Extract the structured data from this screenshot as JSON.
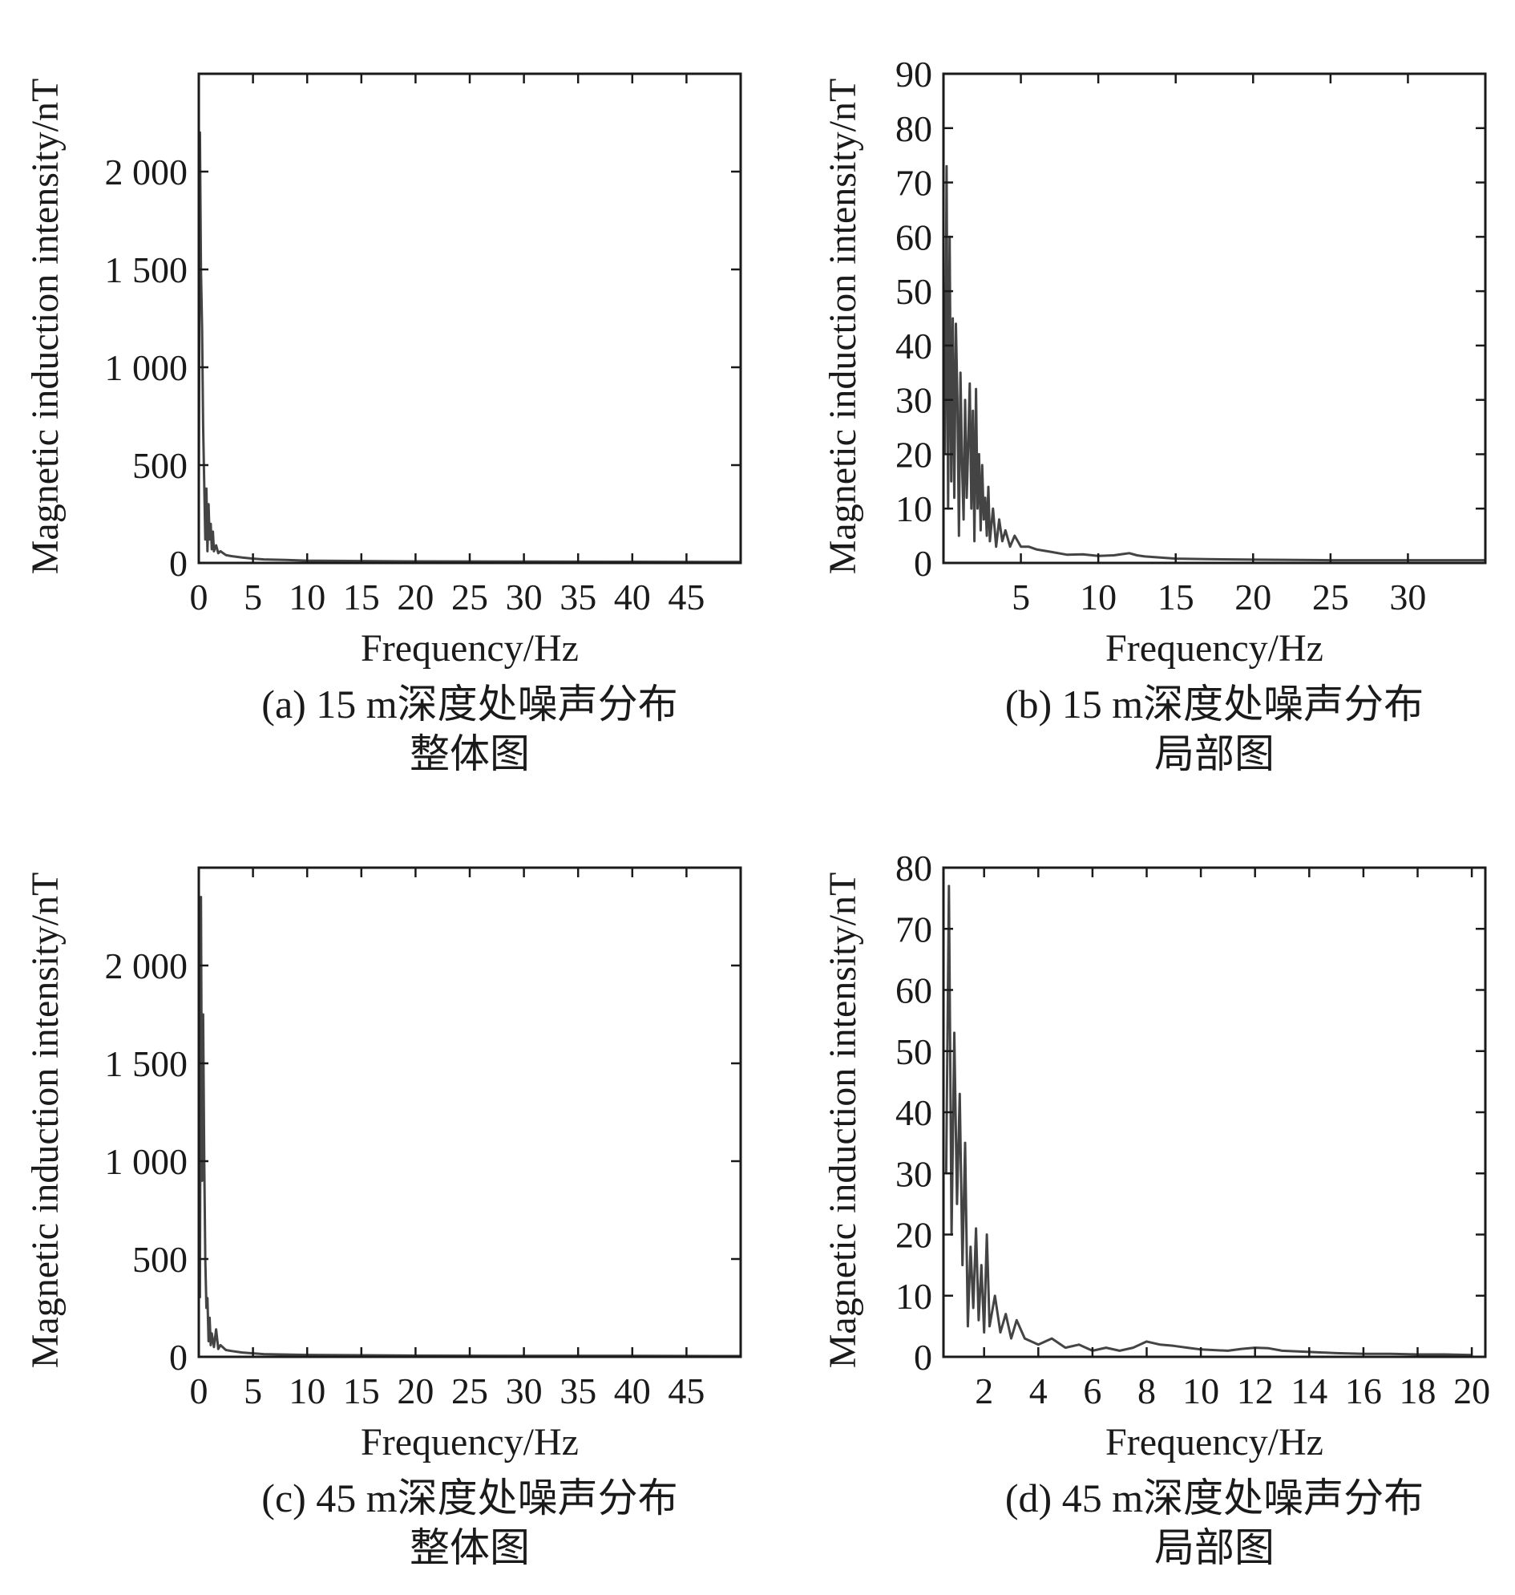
{
  "chart_data": [
    {
      "id": "a",
      "type": "line",
      "caption": [
        "(a) 15 m深度处噪声分布",
        "整体图"
      ],
      "xlabel": "Frequency/Hz",
      "ylabel": "Magnetic induction intensity/nT",
      "xlim": [
        0,
        50
      ],
      "ylim": [
        0,
        2500
      ],
      "xticks": [
        0,
        5,
        10,
        15,
        20,
        25,
        30,
        35,
        40,
        45
      ],
      "xtick_labels": [
        "0",
        "5",
        "10",
        "15",
        "20",
        "25",
        "30",
        "35",
        "40",
        "45"
      ],
      "yticks": [
        0,
        500,
        1000,
        1500,
        2000
      ],
      "ytick_labels": [
        "0",
        "500",
        "1 000",
        "1 500",
        "2 000"
      ],
      "grid": false,
      "series": [
        {
          "color": "#444444",
          "x": [
            0,
            0.1,
            0.2,
            0.3,
            0.4,
            0.5,
            0.6,
            0.7,
            0.8,
            0.9,
            1.0,
            1.1,
            1.2,
            1.3,
            1.4,
            1.6,
            1.8,
            2.0,
            2.5,
            3,
            4,
            5,
            6,
            8,
            10,
            15,
            20,
            30,
            40,
            50
          ],
          "y": [
            400,
            2200,
            1500,
            1200,
            700,
            400,
            120,
            380,
            60,
            300,
            120,
            200,
            70,
            160,
            60,
            90,
            50,
            60,
            40,
            35,
            28,
            22,
            18,
            15,
            12,
            10,
            8,
            7,
            6,
            5
          ]
        }
      ]
    },
    {
      "id": "b",
      "type": "line",
      "caption": [
        "(b) 15 m深度处噪声分布",
        "局部图"
      ],
      "xlabel": "Frequency/Hz",
      "ylabel": "Magnetic induction intensity/nT",
      "xlim": [
        0,
        35
      ],
      "ylim": [
        0,
        90
      ],
      "xticks": [
        5,
        10,
        15,
        20,
        25,
        30
      ],
      "xtick_labels": [
        "5",
        "10",
        "15",
        "20",
        "25",
        "30"
      ],
      "yticks": [
        0,
        10,
        20,
        30,
        40,
        50,
        60,
        70,
        80,
        90
      ],
      "ytick_labels": [
        "0",
        "10",
        "20",
        "30",
        "40",
        "50",
        "60",
        "70",
        "80",
        "90"
      ],
      "grid": false,
      "series": [
        {
          "color": "#444444",
          "x": [
            0.1,
            0.2,
            0.3,
            0.4,
            0.5,
            0.6,
            0.7,
            0.8,
            0.9,
            1.0,
            1.1,
            1.2,
            1.3,
            1.4,
            1.5,
            1.6,
            1.7,
            1.8,
            1.9,
            2.0,
            2.1,
            2.2,
            2.3,
            2.4,
            2.5,
            2.6,
            2.7,
            2.8,
            2.9,
            3.0,
            3.2,
            3.4,
            3.6,
            3.8,
            4.0,
            4.3,
            4.6,
            5.0,
            5.5,
            6,
            7,
            8,
            9,
            10,
            11,
            12,
            12.5,
            13,
            14,
            15,
            17,
            20,
            25,
            30,
            35
          ],
          "y": [
            20,
            73,
            10,
            60,
            15,
            45,
            12,
            44,
            30,
            5,
            35,
            18,
            8,
            30,
            12,
            22,
            33,
            10,
            28,
            4,
            32,
            10,
            20,
            6,
            18,
            8,
            12,
            5,
            14,
            4,
            10,
            3,
            8,
            4,
            6,
            3,
            5,
            3,
            3,
            2.5,
            2,
            1.5,
            1.6,
            1.3,
            1.4,
            1.8,
            1.4,
            1.2,
            1.0,
            0.8,
            0.7,
            0.6,
            0.5,
            0.5,
            0.5
          ]
        }
      ]
    },
    {
      "id": "c",
      "type": "line",
      "caption": [
        "(c) 45 m深度处噪声分布",
        "整体图"
      ],
      "xlabel": "Frequency/Hz",
      "ylabel": "Magnetic induction intensity/nT",
      "xlim": [
        0,
        50
      ],
      "ylim": [
        0,
        2500
      ],
      "xticks": [
        0,
        5,
        10,
        15,
        20,
        25,
        30,
        35,
        40,
        45
      ],
      "xtick_labels": [
        "0",
        "5",
        "10",
        "15",
        "20",
        "25",
        "30",
        "35",
        "40",
        "45"
      ],
      "yticks": [
        0,
        500,
        1000,
        1500,
        2000
      ],
      "ytick_labels": [
        "0",
        "500",
        "1 000",
        "1 500",
        "2 000"
      ],
      "grid": false,
      "series": [
        {
          "color": "#444444",
          "x": [
            0.1,
            0.2,
            0.3,
            0.4,
            0.5,
            0.6,
            0.7,
            0.8,
            0.9,
            1.0,
            1.1,
            1.2,
            1.4,
            1.6,
            1.8,
            2.0,
            2.5,
            3,
            4,
            5,
            6,
            8,
            10,
            15,
            20,
            30,
            40,
            50
          ],
          "y": [
            300,
            2350,
            900,
            1750,
            1000,
            500,
            250,
            300,
            80,
            200,
            60,
            120,
            50,
            140,
            40,
            60,
            35,
            30,
            22,
            18,
            14,
            12,
            10,
            8,
            6,
            5,
            5,
            4
          ]
        }
      ]
    },
    {
      "id": "d",
      "type": "line",
      "caption": [
        "(d) 45 m深度处噪声分布",
        "局部图"
      ],
      "xlabel": "Frequency/Hz",
      "ylabel": "Magnetic induction intensity/nT",
      "xlim": [
        0.5,
        20.5
      ],
      "ylim": [
        0,
        80
      ],
      "xticks": [
        2,
        4,
        6,
        8,
        10,
        12,
        14,
        16,
        18,
        20
      ],
      "xtick_labels": [
        "2",
        "4",
        "6",
        "8",
        "10",
        "12",
        "14",
        "16",
        "18",
        "20"
      ],
      "yticks": [
        0,
        10,
        20,
        30,
        40,
        50,
        60,
        70,
        80
      ],
      "ytick_labels": [
        "0",
        "10",
        "20",
        "30",
        "40",
        "50",
        "60",
        "70",
        "80"
      ],
      "grid": false,
      "series": [
        {
          "color": "#444444",
          "x": [
            0.6,
            0.7,
            0.8,
            0.9,
            1.0,
            1.1,
            1.2,
            1.3,
            1.4,
            1.5,
            1.6,
            1.7,
            1.8,
            1.9,
            2.0,
            2.1,
            2.2,
            2.4,
            2.6,
            2.8,
            3.0,
            3.2,
            3.5,
            4,
            4.5,
            5,
            5.5,
            6,
            6.5,
            7,
            7.5,
            8,
            8.5,
            9,
            9.5,
            10,
            11,
            11.5,
            12,
            12.5,
            13,
            14,
            15,
            16,
            17,
            18,
            19,
            20
          ],
          "y": [
            30,
            77,
            20,
            53,
            25,
            43,
            15,
            35,
            5,
            18,
            8,
            21,
            6,
            15,
            4,
            20,
            5,
            10,
            4,
            7,
            3,
            6,
            3,
            2,
            3,
            1.5,
            2,
            1,
            1.5,
            1,
            1.5,
            2.5,
            2,
            1.8,
            1.5,
            1.2,
            1,
            1.3,
            1.5,
            1.4,
            1.0,
            0.8,
            0.6,
            0.5,
            0.5,
            0.4,
            0.4,
            0.3
          ]
        }
      ]
    }
  ]
}
